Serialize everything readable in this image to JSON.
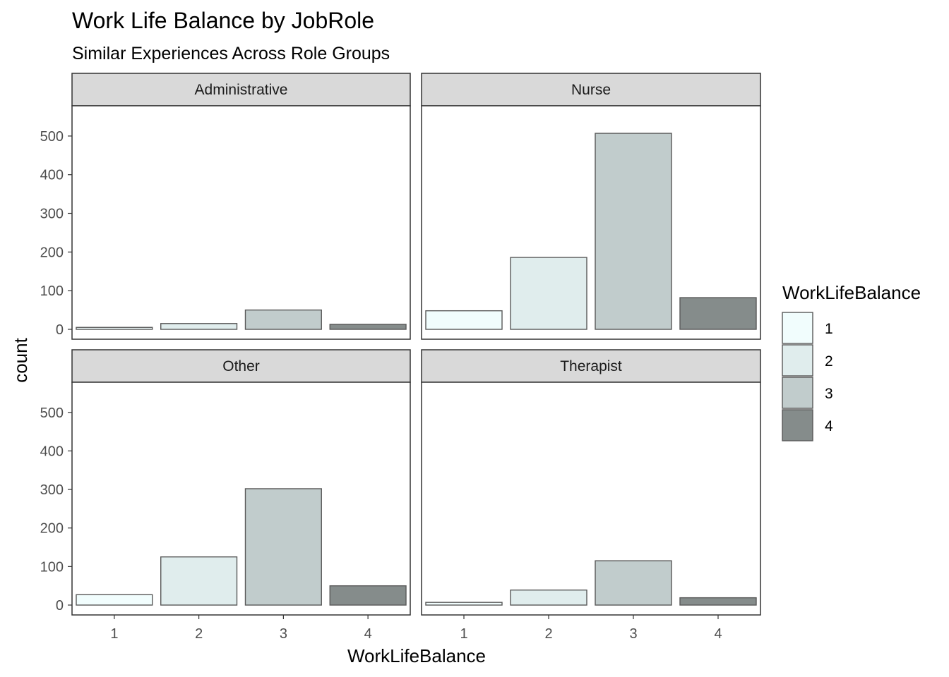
{
  "chart_data": {
    "type": "bar",
    "title": "Work Life Balance by JobRole",
    "subtitle": "Similar Experiences Across Role Groups",
    "xlabel": "WorkLifeBalance",
    "ylabel": "count",
    "ylim": [
      0,
      560
    ],
    "yticks": [
      0,
      100,
      200,
      300,
      400,
      500
    ],
    "categories": [
      "1",
      "2",
      "3",
      "4"
    ],
    "legend": {
      "title": "WorkLifeBalance",
      "position": "right",
      "entries": [
        "1",
        "2",
        "3",
        "4"
      ]
    },
    "colors": {
      "1": "#f1fdfd",
      "2": "#e0eded",
      "3": "#c1cccc",
      "4": "#858c8b"
    },
    "bar_outline": "#595959",
    "grid": false,
    "panels": [
      {
        "name": "Administrative",
        "values": [
          5,
          15,
          50,
          13
        ]
      },
      {
        "name": "Nurse",
        "values": [
          48,
          186,
          507,
          82
        ]
      },
      {
        "name": "Other",
        "values": [
          27,
          125,
          302,
          50
        ]
      },
      {
        "name": "Therapist",
        "values": [
          7,
          39,
          115,
          19
        ]
      }
    ]
  }
}
